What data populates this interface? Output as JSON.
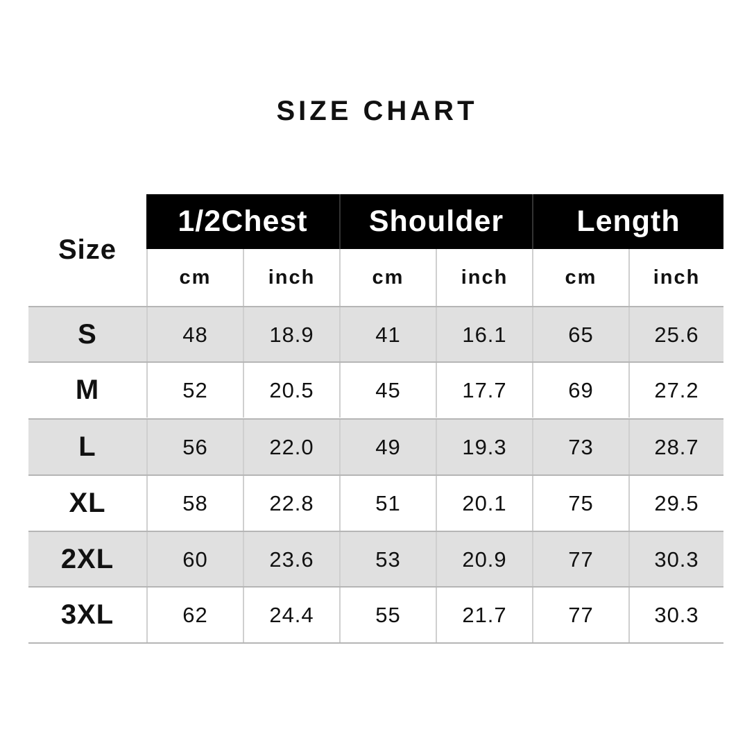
{
  "title": "SIZE CHART",
  "chart_data": {
    "type": "table",
    "title": "SIZE CHART",
    "size_header": "Size",
    "groups": [
      "1/2Chest",
      "Shoulder",
      "Length"
    ],
    "units": [
      "cm",
      "inch",
      "cm",
      "inch",
      "cm",
      "inch"
    ],
    "rows": [
      {
        "size": "S",
        "values": [
          "48",
          "18.9",
          "41",
          "16.1",
          "65",
          "25.6"
        ]
      },
      {
        "size": "M",
        "values": [
          "52",
          "20.5",
          "45",
          "17.7",
          "69",
          "27.2"
        ]
      },
      {
        "size": "L",
        "values": [
          "56",
          "22.0",
          "49",
          "19.3",
          "73",
          "28.7"
        ]
      },
      {
        "size": "XL",
        "values": [
          "58",
          "22.8",
          "51",
          "20.1",
          "75",
          "29.5"
        ]
      },
      {
        "size": "2XL",
        "values": [
          "60",
          "23.6",
          "53",
          "20.9",
          "77",
          "30.3"
        ]
      },
      {
        "size": "3XL",
        "values": [
          "62",
          "24.4",
          "55",
          "21.7",
          "77",
          "30.3"
        ]
      }
    ],
    "colors": {
      "header_bg": "#000000",
      "header_text": "#ffffff",
      "shaded_row": "#e0e0e0"
    }
  }
}
